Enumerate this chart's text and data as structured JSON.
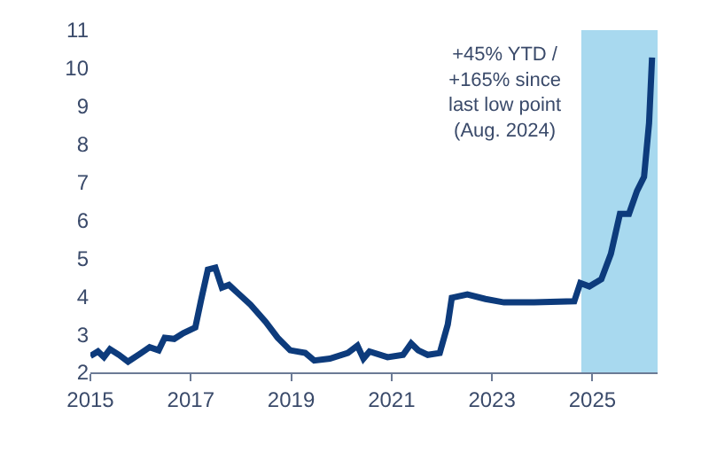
{
  "chart_data": {
    "type": "line",
    "x": [
      2015.0,
      2015.15,
      2015.27,
      2015.39,
      2015.57,
      2015.75,
      2016.0,
      2016.18,
      2016.36,
      2016.48,
      2016.67,
      2016.85,
      2017.09,
      2017.21,
      2017.34,
      2017.49,
      2017.62,
      2017.76,
      2017.94,
      2018.19,
      2018.49,
      2018.73,
      2018.98,
      2019.28,
      2019.46,
      2019.77,
      2020.13,
      2020.32,
      2020.44,
      2020.56,
      2020.92,
      2021.23,
      2021.39,
      2021.53,
      2021.72,
      2021.96,
      2022.12,
      2022.2,
      2022.51,
      2022.87,
      2023.24,
      2023.84,
      2024.64,
      2024.76,
      2024.94,
      2025.18,
      2025.37,
      2025.55,
      2025.73,
      2025.89,
      2026.03,
      2026.13,
      2026.19
    ],
    "series": [
      {
        "color": "#0d3b7c",
        "values": [
          2.43,
          2.55,
          2.4,
          2.61,
          2.46,
          2.28,
          2.5,
          2.66,
          2.58,
          2.91,
          2.88,
          3.03,
          3.18,
          3.93,
          4.7,
          4.75,
          4.23,
          4.3,
          4.08,
          3.78,
          3.33,
          2.91,
          2.58,
          2.51,
          2.31,
          2.36,
          2.51,
          2.7,
          2.36,
          2.55,
          2.4,
          2.46,
          2.76,
          2.58,
          2.46,
          2.51,
          3.26,
          3.96,
          4.05,
          3.93,
          3.84,
          3.84,
          3.87,
          4.35,
          4.26,
          4.45,
          5.12,
          6.17,
          6.17,
          6.77,
          7.14,
          8.56,
          10.28
        ]
      }
    ],
    "xlim": [
      2015,
      2026.3
    ],
    "xticks": [
      2015,
      2017,
      2019,
      2021,
      2023,
      2025
    ],
    "ylim": [
      2,
      11
    ],
    "yticks": [
      2,
      3,
      4,
      5,
      6,
      7,
      8,
      9,
      10,
      11
    ],
    "bands": [
      {
        "axis": "x",
        "from": 2024.78,
        "to": 2026.68,
        "color": "#a8d9ef"
      }
    ],
    "annotations": [
      "+45% YTD /\n+165% since\nlast low point\n(Aug. 2024)"
    ],
    "grid": false,
    "marker": "none",
    "line_style": "solid"
  }
}
